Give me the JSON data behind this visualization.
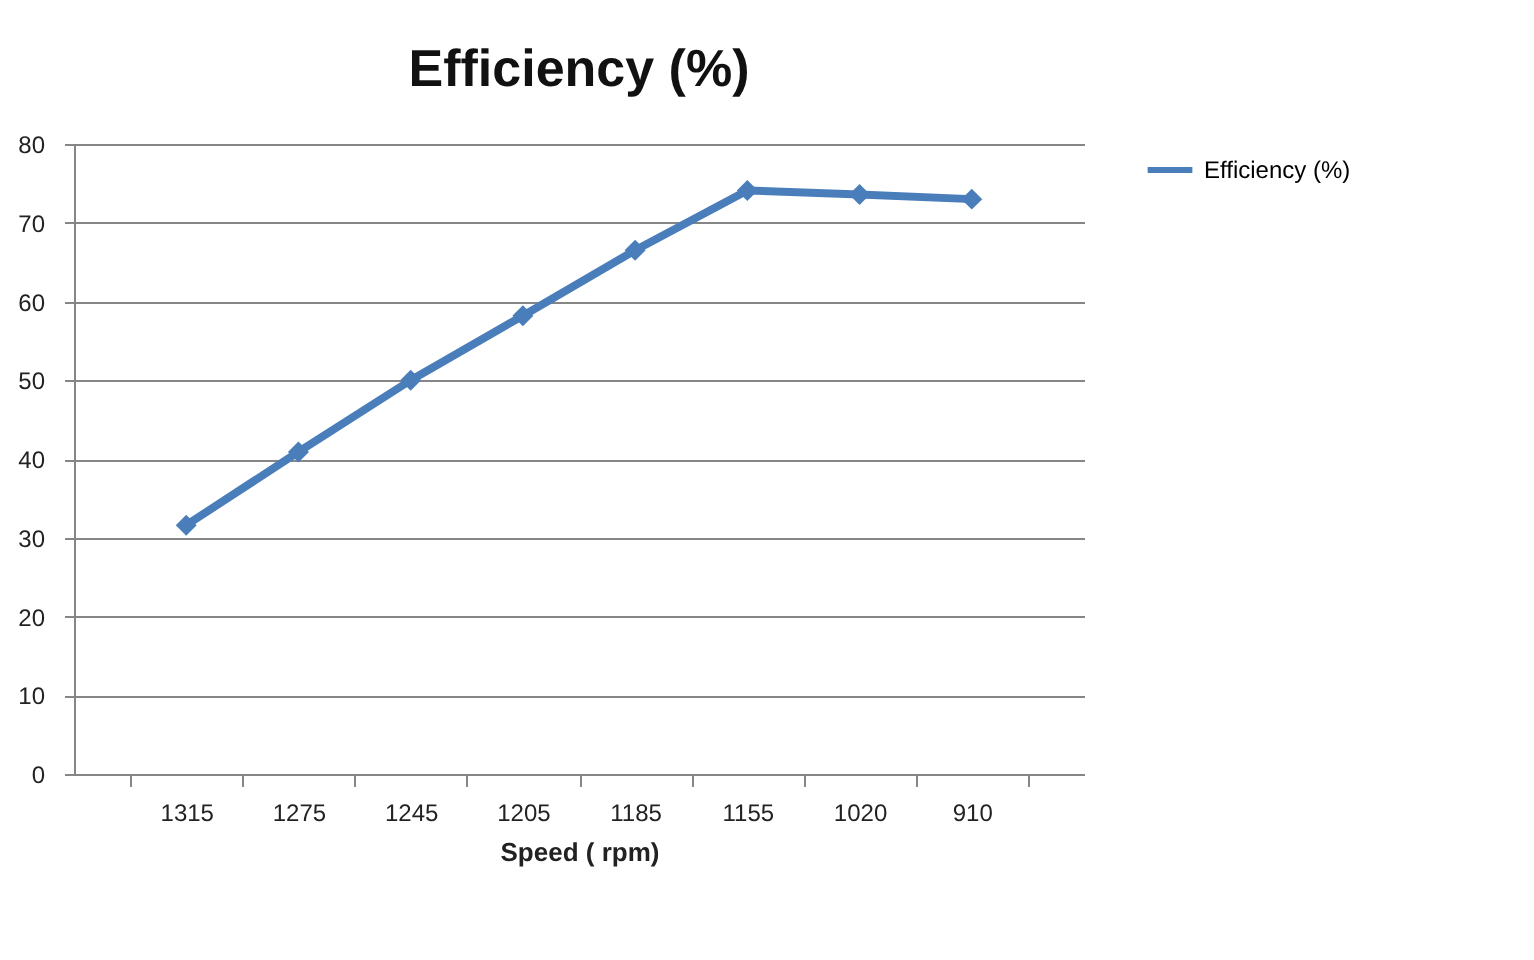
{
  "chart_data": {
    "type": "line",
    "title": "Efficiency (%)",
    "xlabel": "Speed ( rpm)",
    "categories": [
      "1315",
      "1275",
      "1245",
      "1205",
      "1185",
      "1155",
      "1020",
      "910"
    ],
    "series": [
      {
        "name": "Efficiency (%)",
        "color": "#4a7ebb",
        "values": [
          31.6,
          40.9,
          50,
          58.2,
          66.5,
          74.1,
          73.6,
          73
        ]
      }
    ],
    "ylim": [
      0,
      80
    ],
    "yticks": [
      0,
      10,
      20,
      30,
      40,
      50,
      60,
      70,
      80
    ],
    "grid": "y",
    "legend": "right",
    "marker": "diamond"
  }
}
